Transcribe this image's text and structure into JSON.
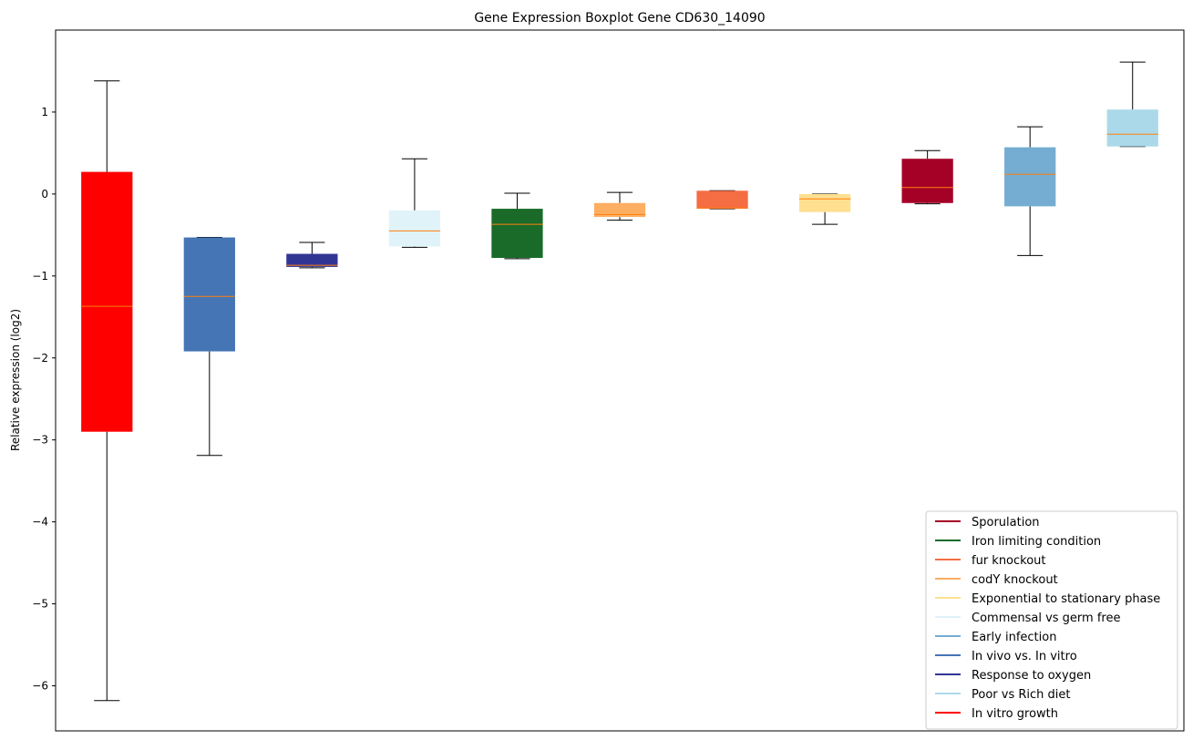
{
  "chart_data": {
    "type": "boxplot",
    "title": "Gene Expression Boxplot Gene CD630_14090",
    "xlabel": "",
    "ylabel": "Relative expression (log2)",
    "ylim": [
      -6.55,
      2.0
    ],
    "yticks": [
      1,
      0,
      -1,
      -2,
      -3,
      -4,
      -5,
      -6
    ],
    "ytick_labels": [
      "1",
      "0",
      "−1",
      "−2",
      "−3",
      "−4",
      "−5",
      "−6"
    ],
    "grid": false,
    "legend_position": "lower-right",
    "median_color": "#ff7f0e",
    "series": [
      {
        "name": "In vitro growth",
        "color": "#ff0000",
        "whisker_low": -6.18,
        "q1": -2.9,
        "median": -1.37,
        "q3": 0.27,
        "whisker_high": 1.38
      },
      {
        "name": "In vivo vs. In vitro",
        "color": "#4575b4",
        "whisker_low": -3.19,
        "q1": -1.92,
        "median": -1.25,
        "q3": -0.53,
        "whisker_high": -0.53
      },
      {
        "name": "Response to oxygen",
        "color": "#313695",
        "whisker_low": -0.9,
        "q1": -0.89,
        "median": -0.87,
        "q3": -0.73,
        "whisker_high": -0.59
      },
      {
        "name": "Commensal vs germ free",
        "color": "#e0f3f8",
        "whisker_low": -0.65,
        "q1": -0.64,
        "median": -0.45,
        "q3": -0.2,
        "whisker_high": 0.43
      },
      {
        "name": "Iron limiting condition",
        "color": "#1a6b2a",
        "whisker_low": -0.79,
        "q1": -0.78,
        "median": -0.37,
        "q3": -0.18,
        "whisker_high": 0.01
      },
      {
        "name": "codY knockout",
        "color": "#fdae61",
        "whisker_low": -0.32,
        "q1": -0.28,
        "median": -0.25,
        "q3": -0.11,
        "whisker_high": 0.02
      },
      {
        "name": "fur knockout",
        "color": "#f46d43",
        "whisker_low": -0.18,
        "q1": -0.18,
        "median": -0.17,
        "q3": 0.04,
        "whisker_high": 0.04
      },
      {
        "name": "Exponential to stationary phase",
        "color": "#fee090",
        "whisker_low": -0.37,
        "q1": -0.22,
        "median": -0.06,
        "q3": 0.0,
        "whisker_high": 0.0
      },
      {
        "name": "Sporulation",
        "color": "#a50026",
        "whisker_low": -0.12,
        "q1": -0.11,
        "median": 0.08,
        "q3": 0.43,
        "whisker_high": 0.53
      },
      {
        "name": "Early infection",
        "color": "#74add1",
        "whisker_low": -0.75,
        "q1": -0.15,
        "median": 0.24,
        "q3": 0.57,
        "whisker_high": 0.82
      },
      {
        "name": "Poor vs Rich diet",
        "color": "#abd9e9",
        "whisker_low": 0.58,
        "q1": 0.58,
        "median": 0.73,
        "q3": 1.03,
        "whisker_high": 1.61
      }
    ],
    "legend": [
      {
        "label": "Sporulation",
        "color": "#a50026"
      },
      {
        "label": "Iron limiting condition",
        "color": "#1a6b2a"
      },
      {
        "label": "fur knockout",
        "color": "#f46d43"
      },
      {
        "label": "codY knockout",
        "color": "#fdae61"
      },
      {
        "label": "Exponential to stationary phase",
        "color": "#fee090"
      },
      {
        "label": "Commensal vs germ free",
        "color": "#e0f3f8"
      },
      {
        "label": "Early infection",
        "color": "#74add1"
      },
      {
        "label": "In vivo vs. In vitro",
        "color": "#4575b4"
      },
      {
        "label": "Response to oxygen",
        "color": "#313695"
      },
      {
        "label": "Poor vs Rich diet",
        "color": "#abd9e9"
      },
      {
        "label": "In vitro growth",
        "color": "#ff0000"
      }
    ]
  }
}
